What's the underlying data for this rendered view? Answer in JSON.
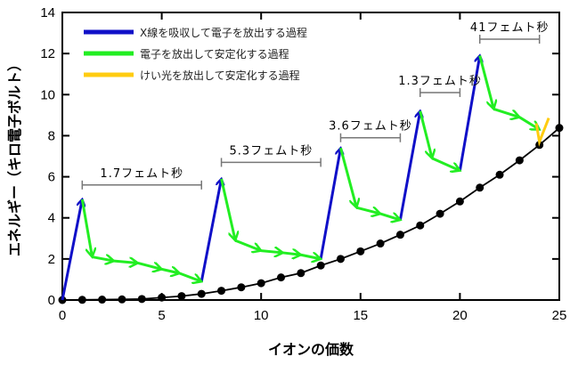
{
  "chart_data": {
    "type": "line",
    "title": "",
    "xlabel": "イオンの価数",
    "ylabel": "エネルギー（キロ電子ボルト）",
    "xlim": [
      0,
      25
    ],
    "ylim": [
      0,
      14
    ],
    "xticks": [
      "0",
      "5",
      "10",
      "15",
      "20",
      "25"
    ],
    "yticks": [
      "0",
      "2",
      "4",
      "6",
      "8",
      "10",
      "12",
      "14"
    ],
    "grid": false,
    "legend_position": "top-left",
    "legend": [
      {
        "label": "X線を吸収して電子を放出する過程",
        "color": "#1010c8"
      },
      {
        "label": "電子を放出して安定化する過程",
        "color": "#22ee22"
      },
      {
        "label": "けい光を放出して安定化する過程",
        "color": "#ffcc11"
      }
    ],
    "baseline_series": {
      "name": "ground state energy",
      "x": [
        0,
        1,
        2,
        3,
        4,
        5,
        6,
        7,
        8,
        9,
        10,
        11,
        12,
        13,
        14,
        15,
        16,
        17,
        18,
        19,
        20,
        21,
        22,
        23,
        24,
        25
      ],
      "y": [
        0,
        0.01,
        0.02,
        0.03,
        0.05,
        0.12,
        0.19,
        0.3,
        0.45,
        0.62,
        0.82,
        1.1,
        1.31,
        1.68,
        2.0,
        2.37,
        2.75,
        3.18,
        3.63,
        4.2,
        4.8,
        5.47,
        6.1,
        6.8,
        7.55,
        8.38
      ]
    },
    "absorption_arrows": [
      {
        "from": [
          0,
          0
        ],
        "to": [
          1,
          4.9
        ]
      },
      {
        "from": [
          7,
          0.9
        ],
        "to": [
          8,
          5.9
        ]
      },
      {
        "from": [
          13,
          2.0
        ],
        "to": [
          14,
          7.4
        ]
      },
      {
        "from": [
          17,
          3.9
        ],
        "to": [
          18,
          9.2
        ]
      },
      {
        "from": [
          20,
          6.3
        ],
        "to": [
          21,
          11.9
        ]
      }
    ],
    "auger_chains": [
      [
        [
          1,
          4.9
        ],
        [
          1.5,
          2.1
        ],
        [
          2.6,
          1.9
        ],
        [
          3.8,
          1.8
        ],
        [
          5.0,
          1.5
        ],
        [
          5.9,
          1.3
        ],
        [
          7,
          0.9
        ]
      ],
      [
        [
          8,
          5.9
        ],
        [
          8.7,
          2.9
        ],
        [
          10.0,
          2.4
        ],
        [
          11.1,
          2.3
        ],
        [
          12.0,
          2.2
        ],
        [
          13,
          2.0
        ]
      ],
      [
        [
          14,
          7.4
        ],
        [
          14.8,
          4.5
        ],
        [
          16.0,
          4.2
        ],
        [
          17,
          3.9
        ]
      ],
      [
        [
          18,
          9.2
        ],
        [
          18.6,
          6.9
        ],
        [
          20,
          6.3
        ]
      ],
      [
        [
          21,
          11.9
        ],
        [
          21.7,
          9.3
        ],
        [
          23,
          8.9
        ],
        [
          24,
          8.3
        ]
      ]
    ],
    "fluorescence": {
      "from": [
        24.2,
        8.6
      ],
      "to": [
        24,
        7.7
      ]
    },
    "intervals": [
      {
        "label": "1.7フェムト秒",
        "x0": 1,
        "x1": 7,
        "y": 5.6
      },
      {
        "label": "5.3フェムト秒",
        "x0": 8,
        "x1": 13,
        "y": 6.7
      },
      {
        "label": "3.6フェムト秒",
        "x0": 14,
        "x1": 17,
        "y": 7.9
      },
      {
        "label": "1.3フェムト秒",
        "x0": 18,
        "x1": 20,
        "y": 10.1
      },
      {
        "label": "41フェムト秒",
        "x0": 21,
        "x1": 24,
        "y": 12.7
      }
    ]
  }
}
